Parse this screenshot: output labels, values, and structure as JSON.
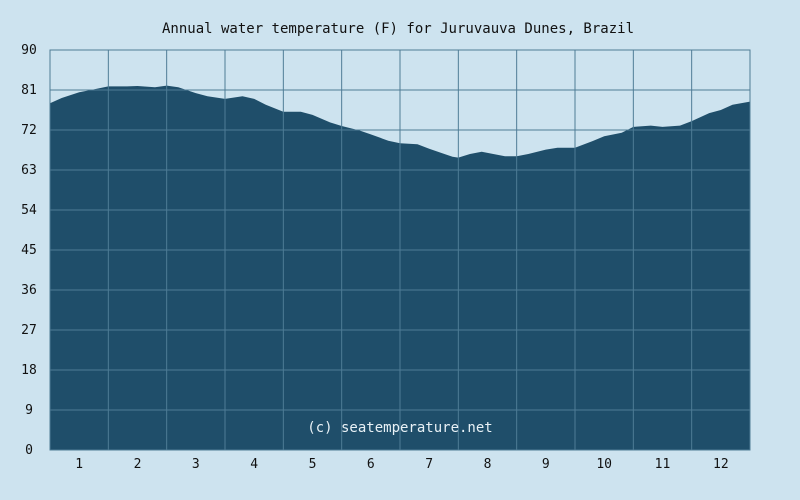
{
  "chart_data": {
    "type": "area",
    "title": "Annual water temperature (F) for Juruvauva Dunes, Brazil",
    "xlabel": "",
    "ylabel": "",
    "categories": [
      "1",
      "2",
      "3",
      "4",
      "5",
      "6",
      "7",
      "8",
      "9",
      "10",
      "11",
      "12"
    ],
    "xlim": [
      0.5,
      12.5
    ],
    "ylim": [
      0,
      90
    ],
    "yticks": [
      "0",
      "9",
      "18",
      "27",
      "36",
      "45",
      "54",
      "63",
      "72",
      "81",
      "90"
    ],
    "grid": true,
    "legend": "none",
    "credit": "(c) seatemperature.net",
    "colors": {
      "background": "#cde3ef",
      "plot_background": "#cde3ef",
      "fill": "#1f4e6a",
      "grid": "#4f7c96",
      "text": "#111111",
      "credit": "#e8f1f6"
    },
    "series": [
      {
        "x": [
          0.5,
          0.7,
          1.0,
          1.2,
          1.5,
          1.8,
          2.0,
          2.3,
          2.5,
          2.7,
          3.0,
          3.2,
          3.5,
          3.8,
          4.0,
          4.2,
          4.5,
          4.8,
          5.0,
          5.3,
          5.5,
          5.8,
          6.0,
          6.3,
          6.5,
          6.8,
          7.0,
          7.2,
          7.4,
          7.5,
          7.7,
          7.9,
          8.1,
          8.3,
          8.5,
          8.7,
          9.0,
          9.2,
          9.5,
          9.8,
          10.0,
          10.3,
          10.5,
          10.8,
          11.0,
          11.3,
          11.5,
          11.8,
          12.0,
          12.2,
          12.5
        ],
        "y": [
          78,
          79.2,
          80.5,
          81.0,
          81.8,
          81.8,
          81.9,
          81.6,
          82.0,
          81.6,
          80.3,
          79.6,
          79.0,
          79.6,
          79.0,
          77.7,
          76.1,
          76.1,
          75.4,
          73.7,
          72.9,
          71.9,
          71.0,
          69.6,
          69.0,
          68.8,
          67.8,
          66.9,
          66.0,
          65.8,
          66.6,
          67.1,
          66.6,
          66.1,
          66.1,
          66.6,
          67.6,
          68.0,
          68.0,
          69.5,
          70.6,
          71.4,
          72.7,
          73.0,
          72.7,
          73.0,
          74.0,
          75.8,
          76.5,
          77.7,
          78.4
        ]
      }
    ]
  }
}
